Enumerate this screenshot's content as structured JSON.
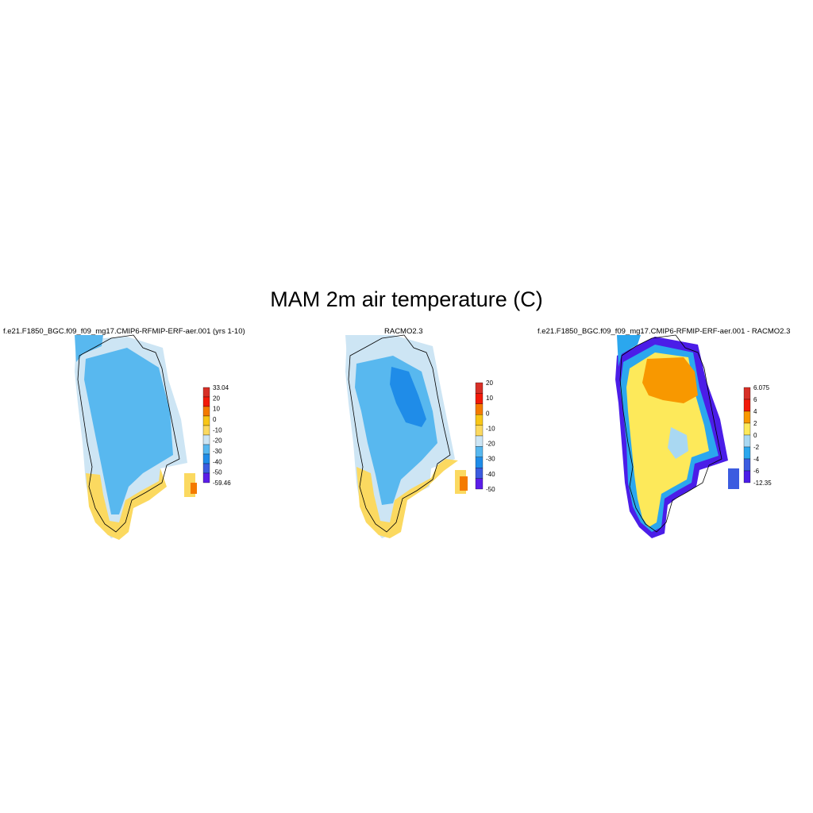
{
  "title": "MAM 2m air temperature (C)",
  "panels": [
    {
      "title": "f.e21.F1850_BGC.f09_f09_mg17.CMIP6-RFMIP-ERF-aer.001 (yrs 1-10)",
      "colorbar": {
        "labels": [
          "33.04",
          "20",
          "10",
          "0",
          "-10",
          "-20",
          "-30",
          "-40",
          "-50",
          "-59.46"
        ],
        "colors": [
          "#d73027",
          "#f21a0a",
          "#f47a00",
          "#f8c617",
          "#fbd960",
          "#cde5f4",
          "#58b8ef",
          "#1f8ce8",
          "#3b5ce0",
          "#5b1de8"
        ]
      }
    },
    {
      "title": "RACMO2.3",
      "colorbar": {
        "labels": [
          "20",
          "10",
          "0",
          "-10",
          "-20",
          "-30",
          "-40",
          "-50"
        ],
        "colors": [
          "#d73027",
          "#f21a0a",
          "#f47a00",
          "#f8c617",
          "#fbd960",
          "#cde5f4",
          "#58b8ef",
          "#1f8ce8",
          "#3b5ce0",
          "#5b1de8"
        ]
      }
    },
    {
      "title": "f.e21.F1850_BGC.f09_f09_mg17.CMIP6-RFMIP-ERF-aer.001 - RACMO2.3",
      "colorbar": {
        "labels": [
          "6.075",
          "6",
          "4",
          "2",
          "0",
          "-2",
          "-4",
          "-6",
          "-12.35"
        ],
        "colors": [
          "#d73027",
          "#f21a0a",
          "#f89800",
          "#fde95a",
          "#a9d8f2",
          "#2ba7ee",
          "#3b5ce0",
          "#4b1de8"
        ]
      }
    }
  ]
}
